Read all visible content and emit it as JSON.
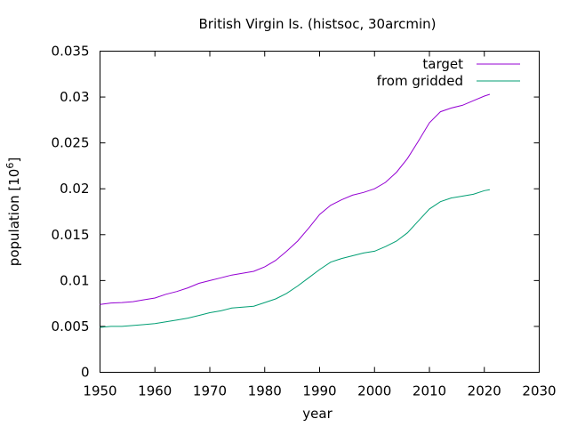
{
  "chart_data": {
    "type": "line",
    "title": "British Virgin Is. (histsoc, 30arcmin)",
    "xlabel": "year",
    "ylabel": "population [10",
    "ylabel_sup": "6",
    "ylabel_close": "]",
    "xlim": [
      1950,
      2030
    ],
    "ylim": [
      0,
      0.035
    ],
    "xticks": [
      1950,
      1960,
      1970,
      1980,
      1990,
      2000,
      2010,
      2020,
      2030
    ],
    "yticks": [
      0,
      0.005,
      0.01,
      0.015,
      0.02,
      0.025,
      0.03,
      0.035
    ],
    "xtick_labels": [
      "1950",
      "1960",
      "1970",
      "1980",
      "1990",
      "2000",
      "2010",
      "2020",
      "2030"
    ],
    "ytick_labels": [
      "0",
      "0.005",
      "0.01",
      "0.015",
      "0.02",
      "0.025",
      "0.03",
      "0.035"
    ],
    "grid": false,
    "legend_position": "top-right",
    "x": [
      1950,
      1952,
      1954,
      1956,
      1958,
      1960,
      1962,
      1964,
      1966,
      1968,
      1970,
      1972,
      1974,
      1976,
      1978,
      1980,
      1982,
      1984,
      1986,
      1988,
      1990,
      1992,
      1994,
      1996,
      1998,
      2000,
      2002,
      2004,
      2006,
      2008,
      2010,
      2012,
      2014,
      2016,
      2018,
      2020,
      2021
    ],
    "series": [
      {
        "name": "target",
        "color": "#9400d3",
        "values": [
          0.0074,
          0.00755,
          0.0076,
          0.0077,
          0.0079,
          0.0081,
          0.0085,
          0.0088,
          0.0092,
          0.0097,
          0.01,
          0.0103,
          0.0106,
          0.0108,
          0.011,
          0.0115,
          0.0122,
          0.0132,
          0.0143,
          0.0157,
          0.0172,
          0.0182,
          0.0188,
          0.0193,
          0.0196,
          0.02,
          0.0207,
          0.0218,
          0.0233,
          0.0252,
          0.0272,
          0.0284,
          0.0288,
          0.0291,
          0.0296,
          0.0301,
          0.0303
        ]
      },
      {
        "name": "from gridded",
        "color": "#009e73",
        "values": [
          0.0049,
          0.005,
          0.005,
          0.0051,
          0.0052,
          0.0053,
          0.0055,
          0.0057,
          0.0059,
          0.0062,
          0.0065,
          0.0067,
          0.007,
          0.0071,
          0.0072,
          0.0076,
          0.008,
          0.0086,
          0.0094,
          0.0103,
          0.0112,
          0.012,
          0.0124,
          0.0127,
          0.013,
          0.0132,
          0.0137,
          0.0143,
          0.0152,
          0.0165,
          0.0178,
          0.0186,
          0.019,
          0.0192,
          0.0194,
          0.0198,
          0.0199
        ]
      }
    ]
  }
}
